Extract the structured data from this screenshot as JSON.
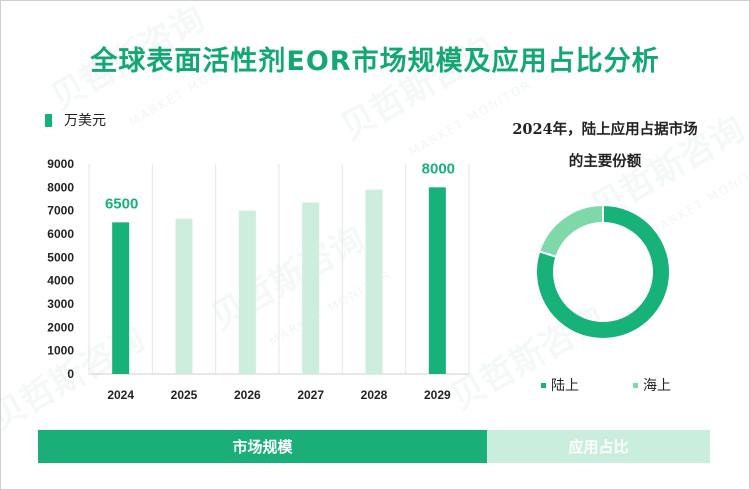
{
  "title": "全球表面活性剂EOR市场规模及应用占比分析",
  "chart_data": [
    {
      "type": "bar",
      "legend": "万美元",
      "categories": [
        "2024",
        "2025",
        "2026",
        "2027",
        "2028",
        "2029"
      ],
      "values": [
        6500,
        6650,
        7000,
        7350,
        7900,
        8000
      ],
      "data_labels": {
        "2024": "6500",
        "2029": "8000"
      },
      "highlight_categories": [
        "2024",
        "2029"
      ],
      "y_ticks": [
        0,
        1000,
        2000,
        3000,
        4000,
        5000,
        6000,
        7000,
        8000,
        9000
      ],
      "ylim": [
        0,
        9000
      ],
      "grid": "vertical",
      "colors": {
        "highlight": "#17b27a",
        "normal": "#cdeedd",
        "data_label": "#17b27a"
      }
    },
    {
      "type": "pie",
      "style": "donut",
      "title_lines": [
        "2024年，陆上应用占据市场",
        "的主要份额"
      ],
      "slices": [
        {
          "name": "陆上",
          "value": 80,
          "color": "#17b27a"
        },
        {
          "name": "海上",
          "value": 20,
          "color": "#7fd8a8"
        }
      ],
      "legend_placement": "bottom"
    }
  ],
  "tabs": [
    {
      "label": "市场规模",
      "active": true
    },
    {
      "label": "应用占比",
      "active": false
    }
  ],
  "watermark": {
    "text": "贝哲斯咨询",
    "sub": "MARKET MONITOR"
  }
}
